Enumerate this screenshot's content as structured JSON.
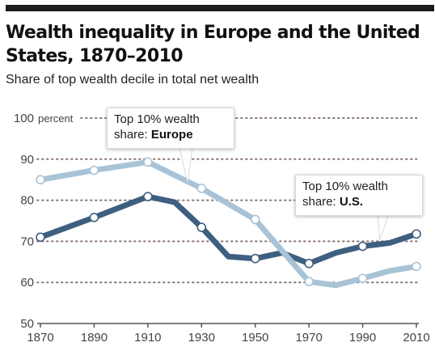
{
  "colors": {
    "europe": "#a9c3d6",
    "us": "#3e5f7f",
    "grid": "#8a7575",
    "axis": "#555555"
  },
  "header": {
    "title": "Wealth inequality in Europe and the United States, 1870–2010",
    "subtitle": "Share of top wealth decile in total net wealth"
  },
  "callouts": {
    "europe": {
      "line1": "Top 10% wealth",
      "prefix": "share: ",
      "name": "Europe"
    },
    "us": {
      "line1": "Top 10% wealth",
      "prefix": "share: ",
      "name": "U.S."
    }
  },
  "chart_data": {
    "type": "line",
    "title": "Wealth inequality in Europe and the United States, 1870–2010",
    "subtitle": "Share of top wealth decile in total net wealth",
    "unit": "percent",
    "xlim": [
      1870,
      2010
    ],
    "ylim": [
      50,
      100
    ],
    "x_ticks": [
      1870,
      1890,
      1910,
      1930,
      1950,
      1970,
      1990,
      2010
    ],
    "y_ticks": [
      50,
      60,
      70,
      80,
      90,
      100
    ],
    "grid": "horizontal dotted",
    "series": [
      {
        "name": "Europe",
        "x": [
          1870,
          1890,
          1910,
          1930,
          1950,
          1960,
          1970,
          1980,
          1990,
          2000,
          2010
        ],
        "y": [
          85,
          87.3,
          89.3,
          82.9,
          75.3,
          67.7,
          60.2,
          59.3,
          61,
          62.8,
          63.9
        ],
        "markers": [
          1870,
          1890,
          1910,
          1930,
          1950,
          1970,
          1990,
          2010
        ]
      },
      {
        "name": "U.S.",
        "x": [
          1870,
          1890,
          1910,
          1920,
          1930,
          1940,
          1950,
          1960,
          1970,
          1980,
          1990,
          2000,
          2010
        ],
        "y": [
          71,
          75.8,
          80.9,
          79.5,
          73.4,
          66.3,
          65.8,
          67.2,
          64.6,
          67.2,
          68.8,
          69.6,
          71.8
        ],
        "markers": [
          1870,
          1890,
          1910,
          1930,
          1950,
          1970,
          1990,
          2010
        ]
      }
    ]
  }
}
